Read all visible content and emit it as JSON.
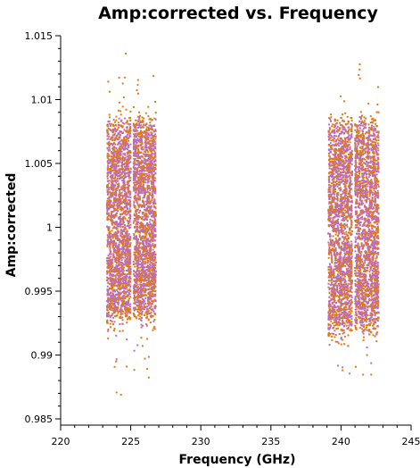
{
  "chart_data": {
    "type": "scatter",
    "title": "Amp:corrected vs. Frequency",
    "xlabel": "Frequency (GHz)",
    "ylabel": "Amp:corrected",
    "xlim": [
      220,
      245
    ],
    "ylim": [
      0.985,
      1.015
    ],
    "x_ticks": [
      220,
      225,
      230,
      235,
      240,
      245
    ],
    "y_ticks": [
      0.985,
      0.99,
      0.995,
      1,
      1.005,
      1.01,
      1.015
    ],
    "x_tick_labels": [
      "220",
      "225",
      "230",
      "235",
      "240",
      "245"
    ],
    "y_tick_labels": [
      "0.985",
      "0.99",
      "0.995",
      "1",
      "1.005",
      "1.01",
      "1.015"
    ],
    "grid": false,
    "legend": "none",
    "series": [
      {
        "color": "#e07b12",
        "bands": [
          {
            "x_range": [
              223.3,
              225.0
            ],
            "y_core": [
              0.9925,
              1.0085
            ],
            "y_extremes": [
              0.9862,
              1.0143
            ]
          },
          {
            "x_range": [
              225.2,
              226.8
            ],
            "y_core": [
              0.9925,
              1.0085
            ],
            "y_extremes": [
              0.9878,
              1.0132
            ]
          },
          {
            "x_range": [
              239.1,
              240.8
            ],
            "y_core": [
              0.9915,
              1.0085
            ],
            "y_extremes": [
              0.9882,
              1.0125
            ]
          },
          {
            "x_range": [
              241.0,
              242.7
            ],
            "y_core": [
              0.9915,
              1.0085
            ],
            "y_extremes": [
              0.988,
              1.0145
            ]
          }
        ]
      },
      {
        "color": "#b86ad0",
        "bands": [
          {
            "x_range": [
              223.3,
              225.0
            ],
            "y_core": [
              0.993,
              1.008
            ],
            "y_extremes": [
              0.989,
              1.0105
            ]
          },
          {
            "x_range": [
              225.2,
              226.8
            ],
            "y_core": [
              0.993,
              1.008
            ],
            "y_extremes": [
              0.9895,
              1.01
            ]
          },
          {
            "x_range": [
              239.1,
              240.8
            ],
            "y_core": [
              0.992,
              1.008
            ],
            "y_extremes": [
              0.9885,
              1.01
            ]
          },
          {
            "x_range": [
              241.0,
              242.7
            ],
            "y_core": [
              0.992,
              1.008
            ],
            "y_extremes": [
              0.989,
              1.01
            ]
          }
        ]
      }
    ]
  }
}
